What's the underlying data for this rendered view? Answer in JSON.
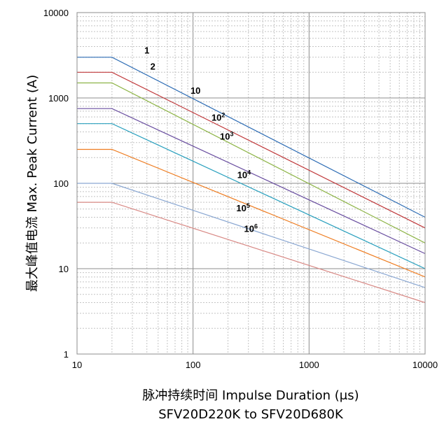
{
  "chart_data": {
    "type": "line",
    "ylabel": "最大峰值电流 Max. Peak Current (A)",
    "xlabel": "脉冲持续时间 Impulse Duration (μs)",
    "subtitle": "SFV20D220K to SFV20D680K",
    "x_scale": "log",
    "y_scale": "log",
    "xlim": [
      10,
      10000
    ],
    "ylim": [
      1,
      10000
    ],
    "x_ticks": [
      "10",
      "100",
      "1000",
      "10000"
    ],
    "y_ticks": [
      "1",
      "10",
      "100",
      "1000",
      "10000"
    ],
    "grid": true,
    "series": [
      {
        "name": "1",
        "base": "1",
        "sup": "",
        "color": "#2e6db5",
        "points": [
          [
            10,
            3000
          ],
          [
            20,
            3000
          ],
          [
            10000,
            40
          ]
        ]
      },
      {
        "name": "2",
        "base": "2",
        "sup": "",
        "color": "#c0393b",
        "points": [
          [
            10,
            2000
          ],
          [
            20,
            2000
          ],
          [
            10000,
            30
          ]
        ]
      },
      {
        "name": "10",
        "base": "10",
        "sup": "",
        "color": "#8db446",
        "points": [
          [
            10,
            1500
          ],
          [
            20,
            1500
          ],
          [
            10000,
            20
          ]
        ]
      },
      {
        "name": "10^2",
        "base": "10",
        "sup": "2",
        "color": "#6a4fa0",
        "points": [
          [
            10,
            750
          ],
          [
            20,
            750
          ],
          [
            10000,
            15
          ]
        ]
      },
      {
        "name": "10^3",
        "base": "10",
        "sup": "3",
        "color": "#2aa0be",
        "points": [
          [
            10,
            500
          ],
          [
            20,
            500
          ],
          [
            10000,
            10
          ]
        ]
      },
      {
        "name": "10^4",
        "base": "10",
        "sup": "4",
        "color": "#ee7d22",
        "points": [
          [
            10,
            250
          ],
          [
            20,
            250
          ],
          [
            10000,
            8
          ]
        ]
      },
      {
        "name": "10^5",
        "base": "10",
        "sup": "5",
        "color": "#8aa7d2",
        "points": [
          [
            10,
            100
          ],
          [
            20,
            100
          ],
          [
            10000,
            6
          ]
        ]
      },
      {
        "name": "10^6",
        "base": "10",
        "sup": "6",
        "color": "#d88884",
        "points": [
          [
            10,
            60
          ],
          [
            20,
            60
          ],
          [
            10000,
            4
          ]
        ]
      }
    ],
    "label_positions": [
      [
        40,
        3300
      ],
      [
        45,
        2150
      ],
      [
        105,
        1120
      ],
      [
        165,
        540
      ],
      [
        195,
        325
      ],
      [
        275,
        115
      ],
      [
        270,
        47
      ],
      [
        315,
        27
      ]
    ]
  }
}
